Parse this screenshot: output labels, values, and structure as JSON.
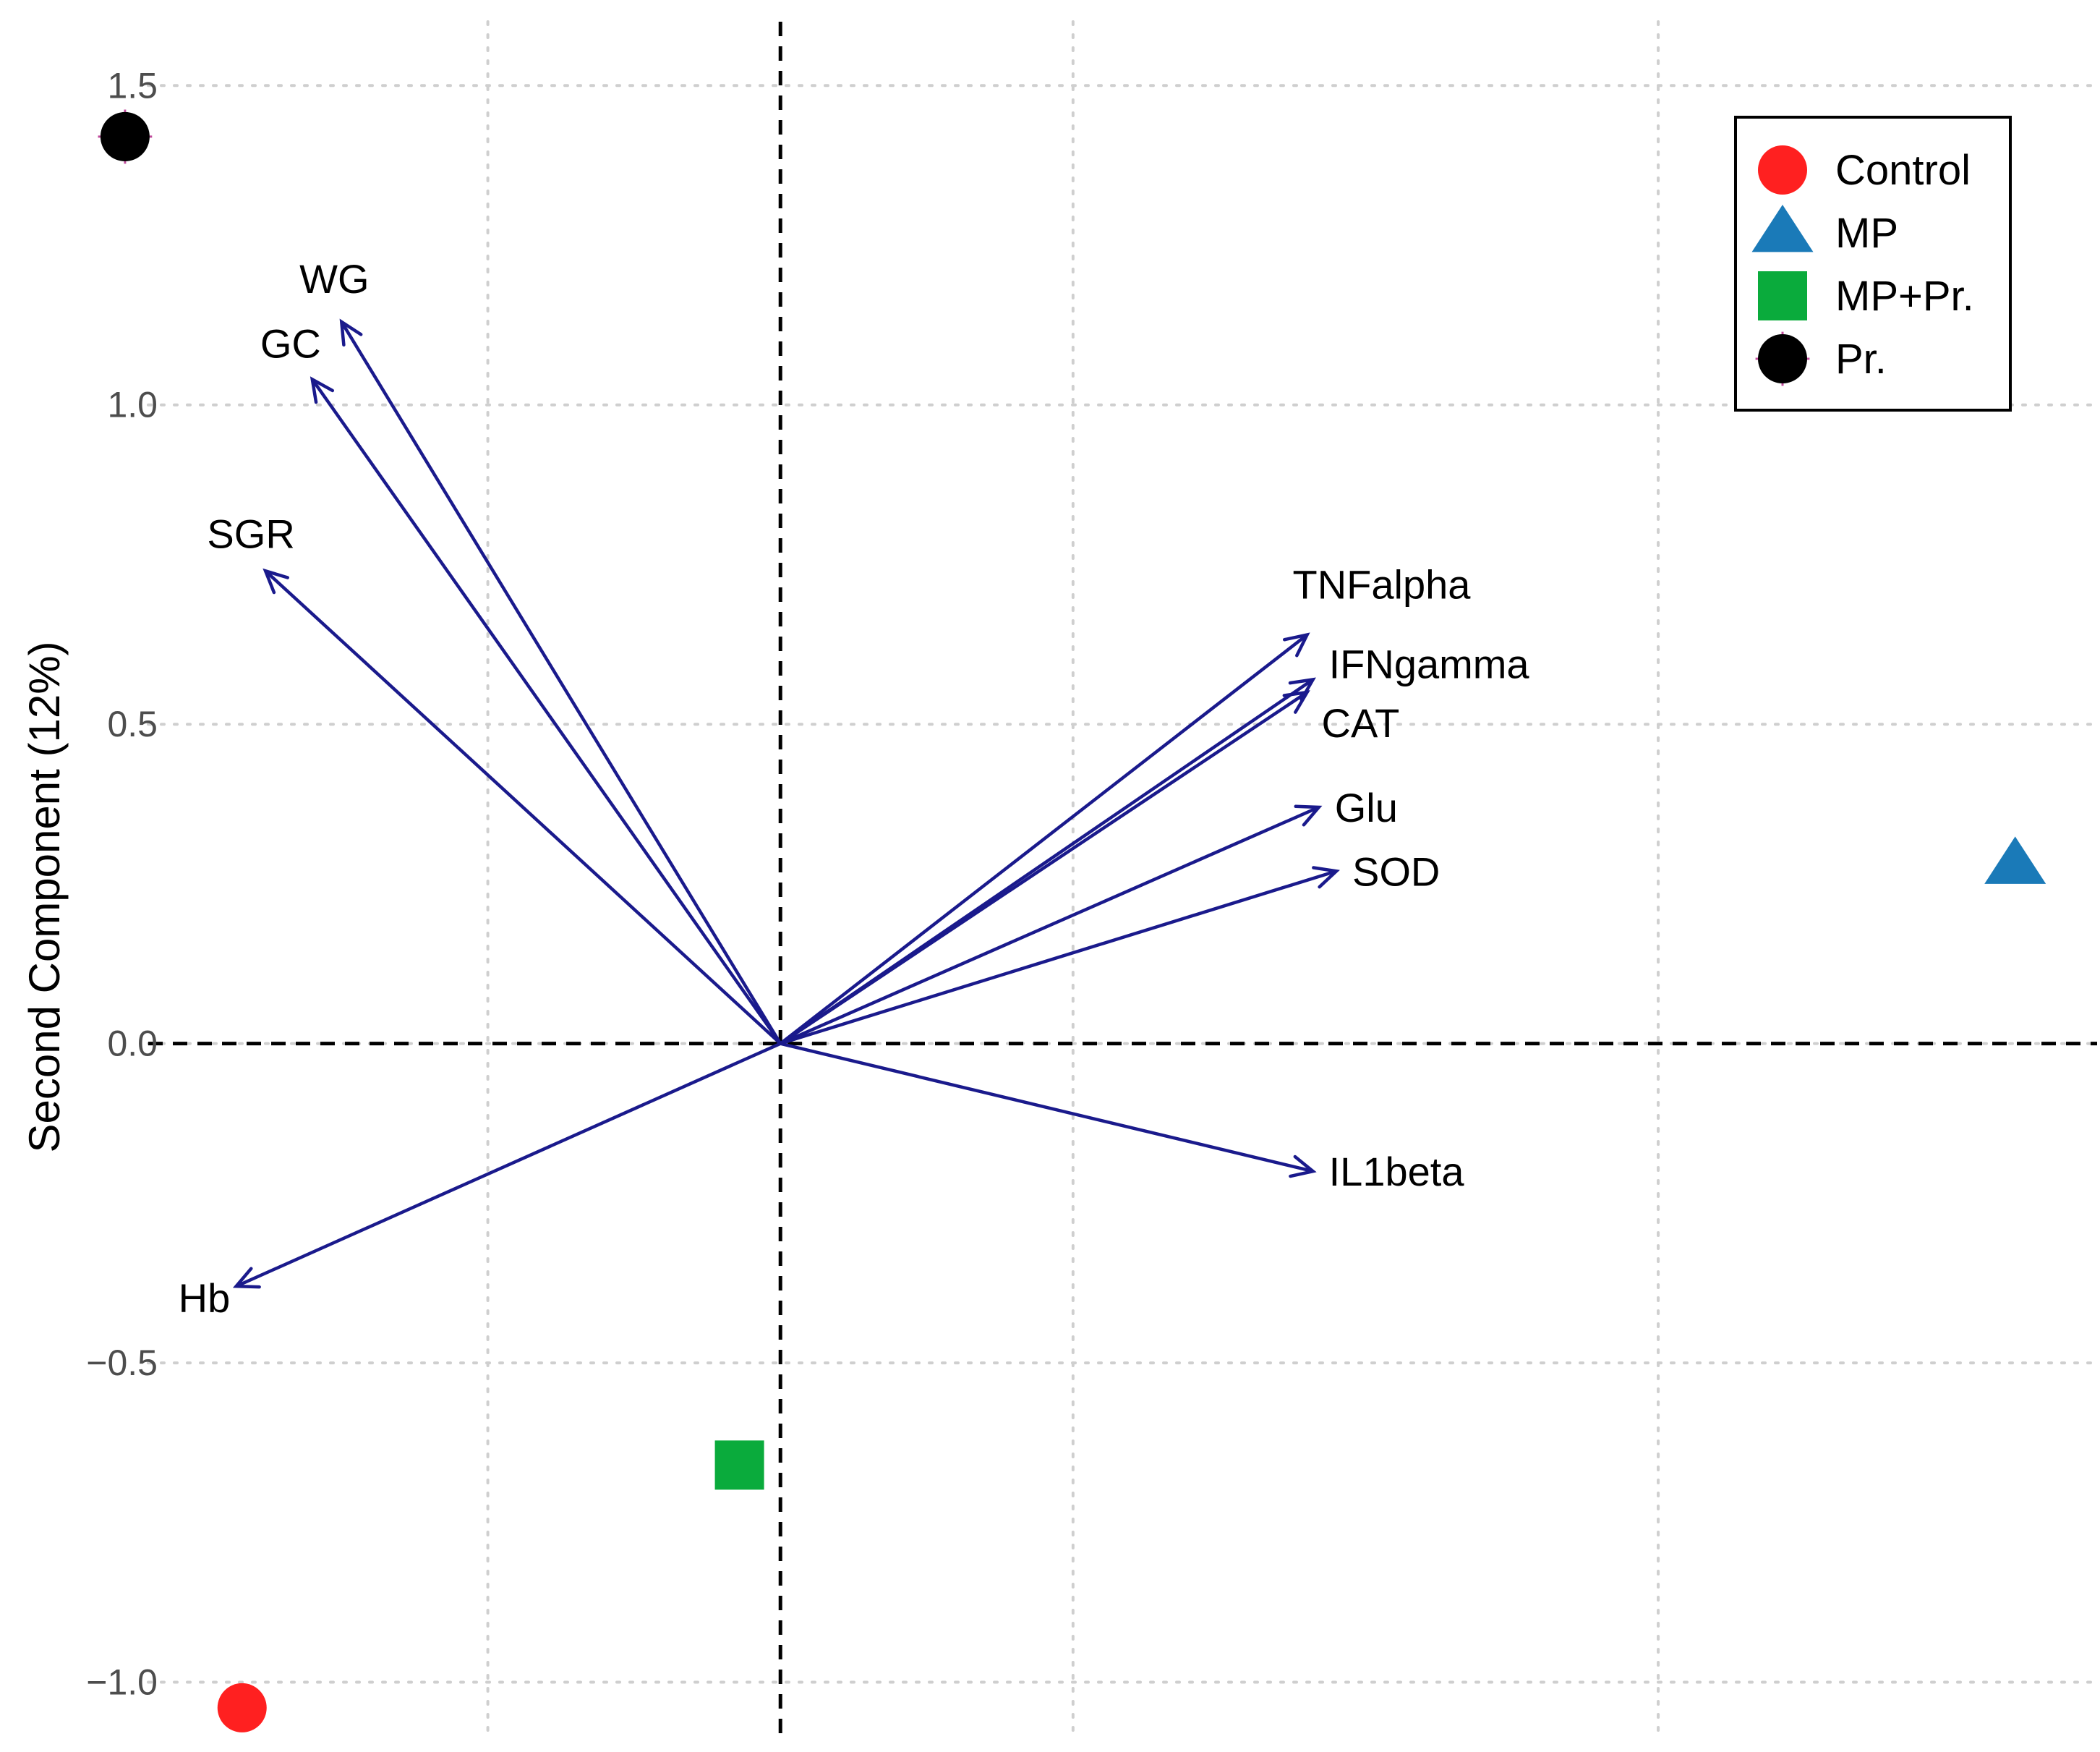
{
  "chart_data": {
    "type": "scatter",
    "title": "",
    "xlabel": "",
    "ylabel": "Second Component (12%)",
    "xlim": [
      -1.0,
      2.25
    ],
    "ylim": [
      -1.09,
      1.6
    ],
    "y_ticks": [
      1.5,
      1.0,
      0.5,
      0.0,
      -0.5,
      -1.0
    ],
    "y_tick_labels": [
      "1.5",
      "1.0",
      "0.5",
      "0.0",
      "−0.5",
      "−1.0"
    ],
    "x_grid": [
      -0.5,
      0.5,
      1.5
    ],
    "grid": true,
    "reference_lines": {
      "x": 0,
      "y": 0,
      "style": "dashed"
    },
    "legend_position": "top-right",
    "series": [
      {
        "name": "Control",
        "shape": "circle",
        "color": "#ff2020",
        "x": -0.92,
        "y": -1.04
      },
      {
        "name": "MP",
        "shape": "triangle",
        "color": "#1a7ab8",
        "x": 2.11,
        "y": 0.28
      },
      {
        "name": "MP+Pr.",
        "shape": "square",
        "color": "#0aab3c",
        "x": -0.07,
        "y": -0.66
      },
      {
        "name": "Pr.",
        "shape": "circle",
        "color": "#000000",
        "x": -1.12,
        "y": 1.42
      }
    ],
    "loadings": [
      {
        "label": "WG",
        "x": -0.75,
        "y": 1.13
      },
      {
        "label": "GC",
        "x": -0.8,
        "y": 1.04
      },
      {
        "label": "SGR",
        "x": -0.88,
        "y": 0.74
      },
      {
        "label": "TNFalpha",
        "x": 0.9,
        "y": 0.64
      },
      {
        "label": "IFNgamma",
        "x": 0.91,
        "y": 0.57
      },
      {
        "label": "CAT",
        "x": 0.9,
        "y": 0.55
      },
      {
        "label": "Glu",
        "x": 0.92,
        "y": 0.37
      },
      {
        "label": "SOD",
        "x": 0.95,
        "y": 0.27
      },
      {
        "label": "IL1beta",
        "x": 0.91,
        "y": -0.2
      },
      {
        "label": "Hb",
        "x": -0.93,
        "y": -0.38
      }
    ]
  }
}
